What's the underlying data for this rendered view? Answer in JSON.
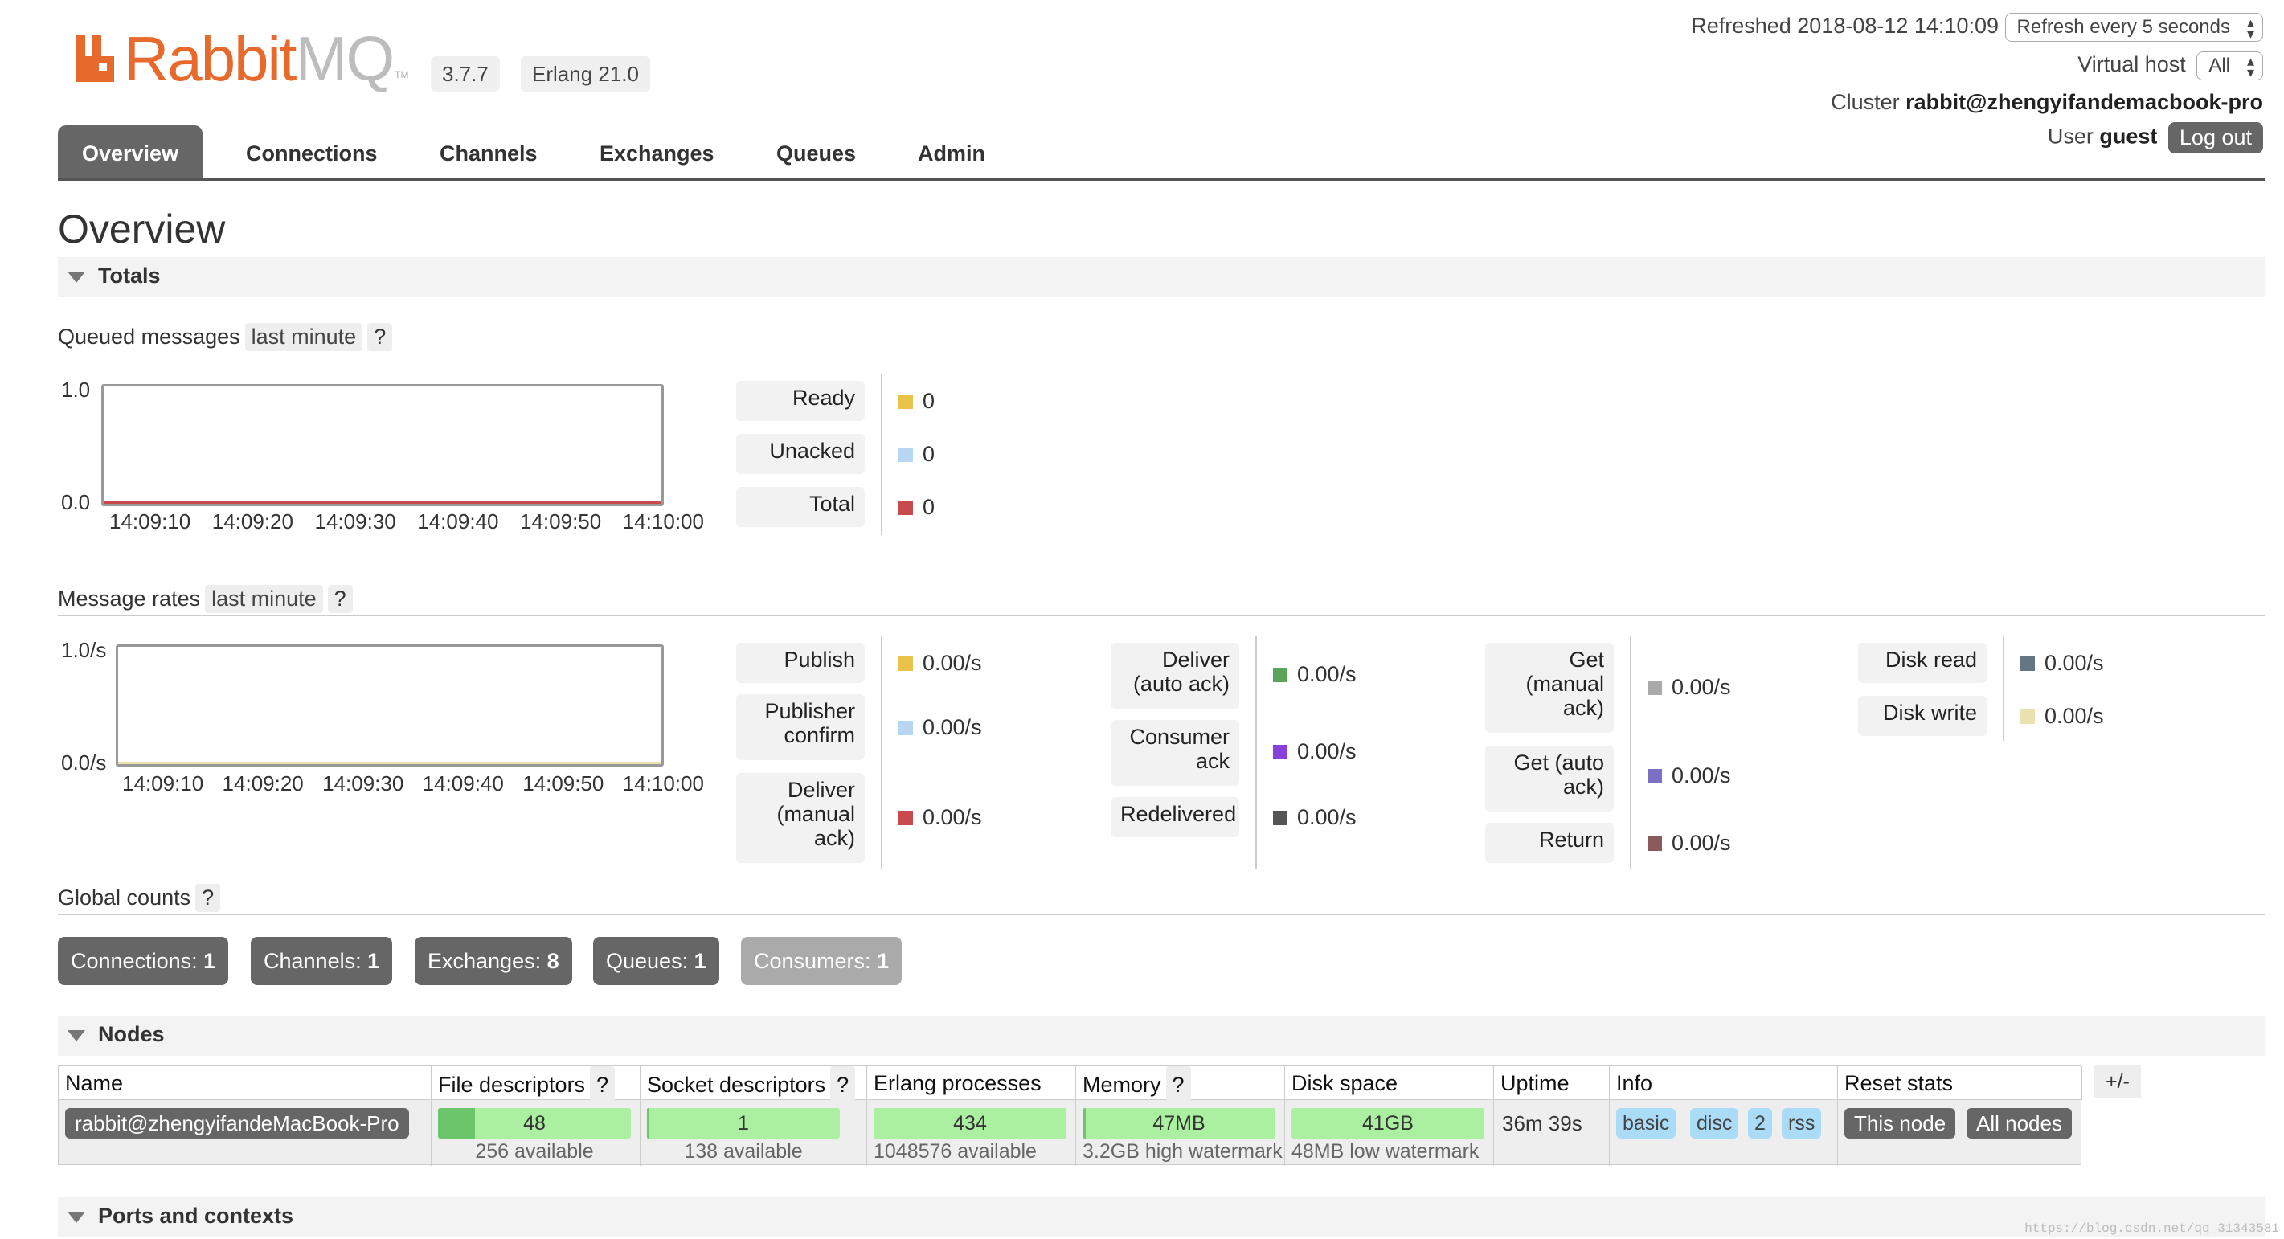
{
  "header": {
    "logo_text_a": "Rabbit",
    "logo_text_b": "MQ",
    "logo_tm": "TM",
    "version": "3.7.7",
    "erlang": "Erlang 21.0",
    "refreshed_label": "Refreshed 2018-08-12 14:10:09",
    "refresh_select": "Refresh every 5 seconds",
    "vhost_label": "Virtual host",
    "vhost_select": "All",
    "cluster_label": "Cluster",
    "cluster_name": "rabbit@zhengyifandemacbook-pro",
    "user_label": "User",
    "user_name": "guest",
    "logout": "Log out"
  },
  "nav": {
    "tabs": [
      "Overview",
      "Connections",
      "Channels",
      "Exchanges",
      "Queues",
      "Admin"
    ],
    "active": "Overview"
  },
  "page_title": "Overview",
  "totals": {
    "header": "Totals",
    "queued": {
      "label": "Queued messages",
      "range": "last minute",
      "help": "?",
      "y_top": "1.0",
      "y_bottom": "0.0",
      "x_ticks": [
        "14:09:10",
        "14:09:20",
        "14:09:30",
        "14:09:40",
        "14:09:50",
        "14:10:00"
      ],
      "legend": [
        {
          "label": "Ready",
          "value": "0",
          "color": "#e9c24a"
        },
        {
          "label": "Unacked",
          "value": "0",
          "color": "#b7d6f2"
        },
        {
          "label": "Total",
          "value": "0",
          "color": "#c84a4a"
        }
      ]
    },
    "rates": {
      "label": "Message rates",
      "range": "last minute",
      "help": "?",
      "y_top": "1.0/s",
      "y_bottom": "0.0/s",
      "x_ticks": [
        "14:09:10",
        "14:09:20",
        "14:09:30",
        "14:09:40",
        "14:09:50",
        "14:10:00"
      ],
      "col1": [
        {
          "label": "Publish",
          "value": "0.00/s",
          "color": "#e9c24a"
        },
        {
          "label": "Publisher confirm",
          "value": "0.00/s",
          "color": "#b7d6f2"
        },
        {
          "label": "Deliver (manual ack)",
          "value": "0.00/s",
          "color": "#c84a4a"
        }
      ],
      "col2": [
        {
          "label": "Deliver (auto ack)",
          "value": "0.00/s",
          "color": "#5aa55a"
        },
        {
          "label": "Consumer ack",
          "value": "0.00/s",
          "color": "#8a3fd9"
        },
        {
          "label": "Redelivered",
          "value": "0.00/s",
          "color": "#555555"
        }
      ],
      "col3": [
        {
          "label": "Get (manual ack)",
          "value": "0.00/s",
          "color": "#aaaaaa"
        },
        {
          "label": "Get (auto ack)",
          "value": "0.00/s",
          "color": "#7a6fc0"
        },
        {
          "label": "Return",
          "value": "0.00/s",
          "color": "#8a5a5a"
        }
      ],
      "col4": [
        {
          "label": "Disk read",
          "value": "0.00/s",
          "color": "#647586"
        },
        {
          "label": "Disk write",
          "value": "0.00/s",
          "color": "#e8e2b0"
        }
      ]
    },
    "global": {
      "label": "Global counts",
      "help": "?",
      "counts": [
        {
          "label": "Connections:",
          "value": "1"
        },
        {
          "label": "Channels:",
          "value": "1"
        },
        {
          "label": "Exchanges:",
          "value": "8"
        },
        {
          "label": "Queues:",
          "value": "1"
        },
        {
          "label": "Consumers:",
          "value": "1"
        }
      ]
    }
  },
  "nodes": {
    "header": "Nodes",
    "columns": [
      "Name",
      "File descriptors",
      "Socket descriptors",
      "Erlang processes",
      "Memory",
      "Disk space",
      "Uptime",
      "Info",
      "Reset stats"
    ],
    "help": "?",
    "toggle": "+/-",
    "row": {
      "name": "rabbit@zhengyifandeMacBook-Pro",
      "fd_used": "48",
      "fd_avail": "256 available",
      "fd_fraction": 0.19,
      "sock_used": "1",
      "sock_avail": "138 available",
      "sock_fraction": 0.01,
      "proc_used": "434",
      "proc_avail": "1048576 available",
      "proc_fraction": 0.0,
      "mem_used": "47MB",
      "mem_avail": "3.2GB high watermark",
      "mem_fraction": 0.015,
      "disk_free": "41GB",
      "disk_avail": "48MB low watermark",
      "uptime": "36m 39s",
      "info": [
        "basic",
        "disc",
        "2",
        "rss"
      ],
      "reset_this": "This node",
      "reset_all": "All nodes"
    }
  },
  "ports": {
    "header": "Ports and contexts"
  },
  "watermark": "https://blog.csdn.net/qq_31343581"
}
